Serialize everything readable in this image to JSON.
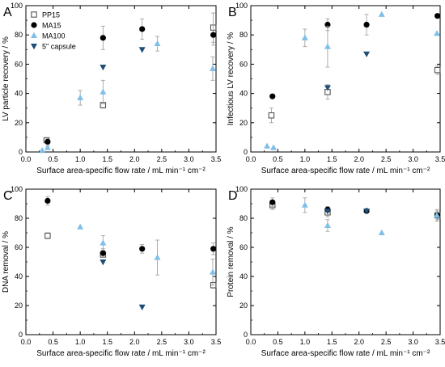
{
  "figure": {
    "colors": {
      "PP15": "#555555",
      "MA15": "#000000",
      "MA100": "#7fbfe8",
      "capsule": "#1f4e79",
      "error_bar": "#999999"
    },
    "legend_labels": [
      "PP15",
      "MA15",
      "MA100",
      "5\" capsule"
    ]
  },
  "chart_data": [
    {
      "panel_label": "A",
      "type": "scatter",
      "xlabel": "Surface area-specific flow rate / mL min⁻¹ cm⁻²",
      "ylabel": "LV particle recovery / %",
      "xlim": [
        0,
        3.5
      ],
      "ylim": [
        0,
        100
      ],
      "xticks": [
        "0.0",
        "0.5",
        "1.0",
        "1.5",
        "2.0",
        "2.5",
        "3.0",
        "3.5"
      ],
      "yticks": [
        "0",
        "20",
        "40",
        "60",
        "80",
        "100"
      ],
      "grid": false,
      "legend": "top-left",
      "series": [
        {
          "name": "PP15",
          "marker": "open-square",
          "points": [
            [
              0.38,
              8,
              1.5
            ],
            [
              1.42,
              32,
              2
            ],
            [
              3.45,
              85,
              10
            ]
          ]
        },
        {
          "name": "MA15",
          "marker": "filled-circle",
          "points": [
            [
              0.4,
              7,
              2
            ],
            [
              1.42,
              78,
              8
            ],
            [
              2.14,
              84,
              7
            ],
            [
              3.45,
              80,
              7
            ]
          ]
        },
        {
          "name": "MA100",
          "marker": "triangle-up",
          "points": [
            [
              0.3,
              1,
              0
            ],
            [
              0.4,
              3,
              1
            ],
            [
              1.0,
              37,
              5
            ],
            [
              1.42,
              41,
              8
            ],
            [
              2.42,
              74,
              5
            ],
            [
              3.44,
              57,
              8
            ]
          ]
        },
        {
          "name": "5\" capsule",
          "marker": "triangle-down",
          "points": [
            [
              1.42,
              58,
              0
            ],
            [
              2.14,
              70,
              0
            ]
          ]
        }
      ]
    },
    {
      "panel_label": "B",
      "type": "scatter",
      "xlabel": "Surface area-specific flow rate / mL min⁻¹ cm⁻²",
      "ylabel": "Infectious LV recovery / %",
      "xlim": [
        0,
        3.5
      ],
      "ylim": [
        0,
        100
      ],
      "xticks": [
        "0.0",
        "0.5",
        "1.0",
        "1.5",
        "2.0",
        "2.5",
        "3.0",
        "3.5"
      ],
      "yticks": [
        "0",
        "20",
        "40",
        "60",
        "80",
        "100"
      ],
      "grid": false,
      "series": [
        {
          "name": "PP15",
          "marker": "open-square",
          "points": [
            [
              0.38,
              25,
              5
            ],
            [
              1.42,
              41,
              5
            ],
            [
              3.45,
              56,
              3
            ]
          ]
        },
        {
          "name": "MA15",
          "marker": "filled-circle",
          "points": [
            [
              0.4,
              38,
              0
            ],
            [
              1.42,
              87,
              4
            ],
            [
              2.14,
              87,
              7
            ],
            [
              3.45,
              93,
              0
            ]
          ]
        },
        {
          "name": "MA100",
          "marker": "triangle-up",
          "points": [
            [
              0.3,
              4,
              0
            ],
            [
              0.42,
              3,
              0
            ],
            [
              1.0,
              78,
              6
            ],
            [
              1.42,
              72,
              14
            ],
            [
              2.42,
              94,
              0
            ],
            [
              3.44,
              81,
              0
            ]
          ]
        },
        {
          "name": "5\" capsule",
          "marker": "triangle-down",
          "points": [
            [
              1.42,
              44,
              0
            ],
            [
              2.14,
              67,
              0
            ]
          ]
        }
      ]
    },
    {
      "panel_label": "C",
      "type": "scatter",
      "xlabel": "Surface area-specific flow rate / mL min⁻¹ cm⁻²",
      "ylabel": "DNA removal / %",
      "xlim": [
        0,
        3.5
      ],
      "ylim": [
        0,
        100
      ],
      "xticks": [
        "0.0",
        "0.5",
        "1.0",
        "1.5",
        "2.0",
        "2.5",
        "3.0",
        "3.5"
      ],
      "yticks": [
        "0",
        "20",
        "40",
        "60",
        "80",
        "100"
      ],
      "grid": false,
      "series": [
        {
          "name": "PP15",
          "marker": "open-square",
          "points": [
            [
              0.4,
              68,
              2
            ],
            [
              1.42,
              55,
              2
            ],
            [
              3.45,
              34,
              2
            ]
          ]
        },
        {
          "name": "MA15",
          "marker": "filled-circle",
          "points": [
            [
              0.4,
              92,
              3
            ],
            [
              1.42,
              56,
              3
            ],
            [
              2.14,
              59,
              3
            ],
            [
              3.45,
              59,
              4
            ]
          ]
        },
        {
          "name": "MA100",
          "marker": "triangle-up",
          "points": [
            [
              1.0,
              74,
              0
            ],
            [
              1.42,
              63,
              5
            ],
            [
              2.42,
              53,
              12
            ],
            [
              3.44,
              43,
              9
            ]
          ]
        },
        {
          "name": "5\" capsule",
          "marker": "triangle-down",
          "points": [
            [
              1.42,
              50,
              0
            ],
            [
              2.14,
              19,
              0
            ]
          ]
        }
      ]
    },
    {
      "panel_label": "D",
      "type": "scatter",
      "xlabel": "Surface area-specific flow rate / mL min⁻¹ cm⁻²",
      "ylabel": "Protein removal / %",
      "xlim": [
        0,
        3.5
      ],
      "ylim": [
        0,
        100
      ],
      "xticks": [
        "0.0",
        "0.5",
        "1.0",
        "1.5",
        "2.0",
        "2.5",
        "3.0",
        "3.5"
      ],
      "yticks": [
        "0",
        "20",
        "40",
        "60",
        "80",
        "100"
      ],
      "grid": false,
      "series": [
        {
          "name": "PP15",
          "marker": "open-square",
          "points": [
            [
              0.4,
              89,
              3
            ],
            [
              1.42,
              84,
              3
            ],
            [
              3.45,
              82,
              3
            ]
          ]
        },
        {
          "name": "MA15",
          "marker": "filled-circle",
          "points": [
            [
              0.4,
              91,
              3
            ],
            [
              1.42,
              86,
              2
            ],
            [
              2.14,
              85,
              1
            ],
            [
              3.45,
              82,
              2
            ]
          ]
        },
        {
          "name": "MA100",
          "marker": "triangle-up",
          "points": [
            [
              1.0,
              89,
              5
            ],
            [
              1.42,
              75,
              4
            ],
            [
              2.42,
              70,
              0
            ],
            [
              3.44,
              82,
              4
            ]
          ]
        },
        {
          "name": "5\" capsule",
          "marker": "triangle-down",
          "points": [
            [
              1.42,
              85,
              0
            ],
            [
              2.14,
              85,
              0
            ]
          ]
        }
      ]
    }
  ]
}
